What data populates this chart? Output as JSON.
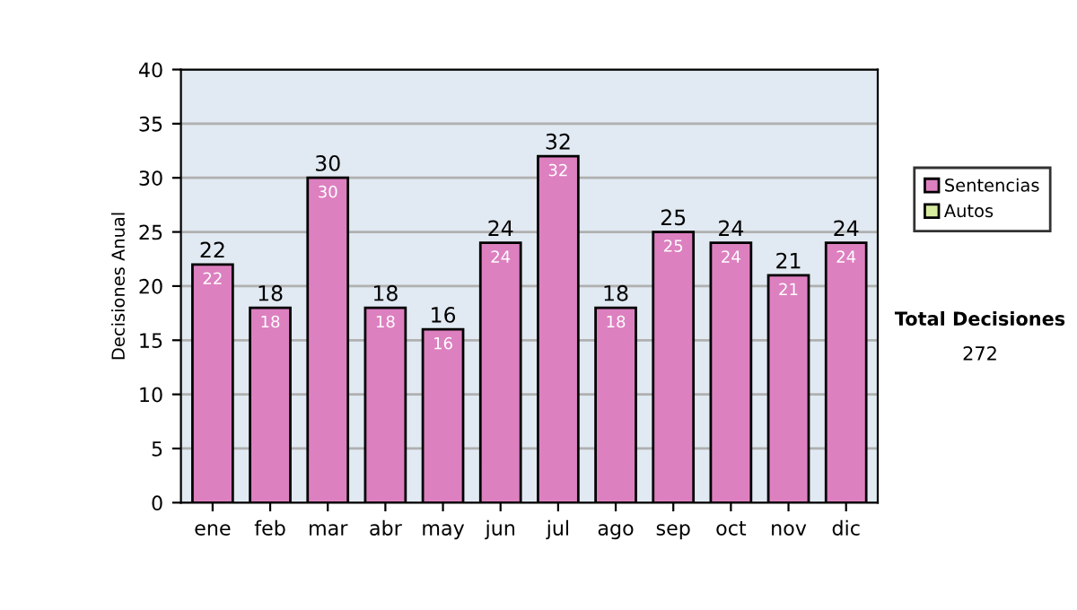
{
  "chart_data": {
    "type": "bar",
    "ylabel": "Decisiones Anual",
    "categories": [
      "ene",
      "feb",
      "mar",
      "abr",
      "may",
      "jun",
      "jul",
      "ago",
      "sep",
      "oct",
      "nov",
      "dic"
    ],
    "series": [
      {
        "name": "Sentencias",
        "color": "#dd80c0",
        "values": [
          22,
          18,
          30,
          18,
          16,
          24,
          32,
          18,
          25,
          24,
          21,
          24
        ],
        "value_labels": [
          "22",
          "18",
          "30",
          "18",
          "16",
          "24",
          "32",
          "18",
          "25",
          "24",
          "21",
          "24"
        ]
      },
      {
        "name": "Autos",
        "color": "#d8eca0",
        "values": [
          0,
          0,
          0,
          0,
          0,
          0,
          0,
          0,
          0,
          0,
          0,
          0
        ]
      }
    ],
    "stacked": true,
    "totals": [
      "22",
      "18",
      "30",
      "18",
      "16",
      "24",
      "32",
      "18",
      "25",
      "24",
      "21",
      "24"
    ],
    "ylim": [
      0,
      40
    ],
    "yticks": [
      0,
      5,
      10,
      15,
      20,
      25,
      30,
      35,
      40
    ],
    "grid": "y",
    "legend": "right",
    "annotations": [
      "Total Decisiones",
      "272"
    ]
  }
}
